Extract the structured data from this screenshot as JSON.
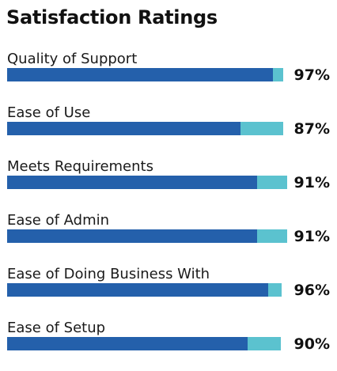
{
  "chart_data": {
    "type": "bar",
    "title": "Satisfaction Ratings",
    "categories": [
      "Quality of Support",
      "Ease of Use",
      "Meets Requirements",
      "Ease of Admin",
      "Ease of Doing Business With",
      "Ease of Setup"
    ],
    "values": [
      97,
      87,
      91,
      91,
      96,
      90
    ],
    "value_labels": [
      "97%",
      "87%",
      "91%",
      "91%",
      "96%",
      "90%"
    ],
    "ylim": [
      0,
      100
    ],
    "colors": {
      "fill": "#2460ab",
      "track": "#5bc2cf"
    }
  }
}
